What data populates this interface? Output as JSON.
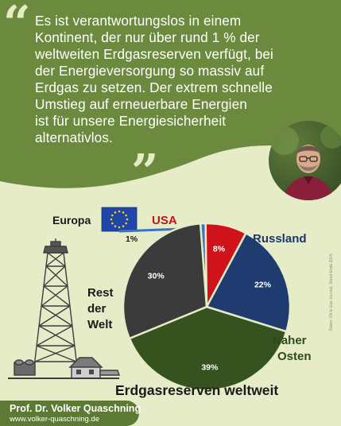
{
  "quote": {
    "lines": [
      "Es ist verantwortungslos in einem",
      "Kontinent, der nur über rund 1 % der",
      "weltweiten Erdgasreserven verfügt, bei",
      "der Energieversorgung so massiv auf",
      "Erdgas zu setzen. Der extrem schnelle",
      "Umstieg auf erneuerbare Energien",
      "ist für unsere Energiesicherheit",
      "alternativlos."
    ],
    "open_mark": "“",
    "close_mark": "”"
  },
  "colors": {
    "banner": "#6c8a3e",
    "background": "#e6ecc8",
    "europa": "#3a73c4",
    "usa": "#d0121b",
    "russland": "#1f3b70",
    "naher_osten": "#36521f",
    "rest": "#3b3b3b"
  },
  "chart_data": {
    "type": "pie",
    "title": "Erdgasreserven weltweit",
    "slices": [
      {
        "name": "Europa",
        "value": 1,
        "label": "1%",
        "color": "#3a73c4"
      },
      {
        "name": "USA",
        "value": 8,
        "label": "8%",
        "color": "#d0121b"
      },
      {
        "name": "Russland",
        "value": 22,
        "label": "22%",
        "color": "#1f3b70"
      },
      {
        "name": "Naher Osten",
        "value": 39,
        "label": "39%",
        "color": "#36521f"
      },
      {
        "name": "Rest der Welt",
        "value": 30,
        "label": "30%",
        "color": "#3b3b3b"
      }
    ],
    "category_labels": {
      "europa": "Europa",
      "usa": "USA",
      "russland": "Russland",
      "rest": [
        "Rest",
        "der",
        "Welt"
      ],
      "naher": [
        "Naher",
        "Osten"
      ]
    }
  },
  "source": "Daten: Oil & Gas Journal, Stand Ende 2024",
  "footer": {
    "name": "Prof. Dr. Volker Quaschning",
    "url": "www.volker-quaschning.de"
  },
  "icons": {
    "eu_flag": "eu-flag-icon",
    "gas_rig": "gas-rig-icon",
    "portrait": "portrait-photo"
  }
}
